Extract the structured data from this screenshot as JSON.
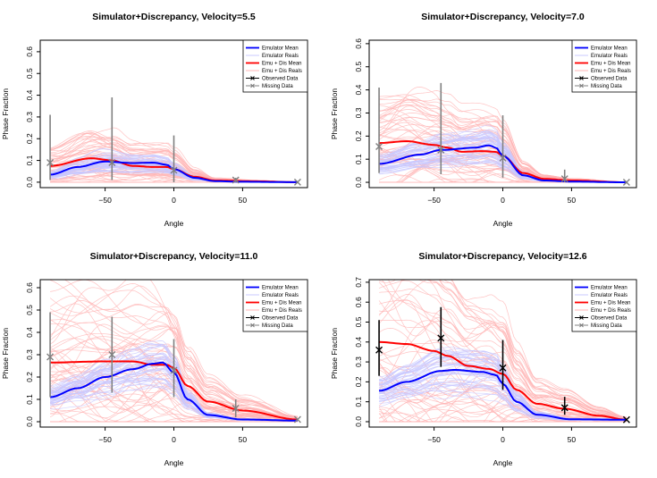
{
  "chart_data": [
    {
      "type": "line",
      "title": "Simulator+Discrepancy, Velocity=5.5",
      "xlabel": "Angle",
      "ylabel": "Phase Fraction",
      "xlim": [
        -97.2,
        97.2
      ],
      "ylim": [
        -0.025,
        0.653
      ],
      "xticks": [
        -50,
        0,
        50
      ],
      "yticks": [
        0.0,
        0.1,
        0.2,
        0.3,
        0.4,
        0.5,
        0.6
      ],
      "grid": false,
      "legend_position": "top-right",
      "emulator_mean": {
        "x": [
          -90,
          -70,
          -50,
          -30,
          -15,
          -5,
          0,
          15,
          30,
          50,
          90
        ],
        "y": [
          0.035,
          0.07,
          0.095,
          0.088,
          0.09,
          0.08,
          0.06,
          0.02,
          0.005,
          0.002,
          0.0
        ]
      },
      "emu_dis_mean": {
        "x": [
          -90,
          -60,
          -45,
          -30,
          -15,
          -5,
          0,
          15,
          30,
          60,
          90
        ],
        "y": [
          0.075,
          0.11,
          0.1,
          0.075,
          0.07,
          0.07,
          0.06,
          0.025,
          0.008,
          0.004,
          0.0
        ]
      },
      "data_points": [
        {
          "x": -90,
          "y": 0.09,
          "lo": 0.01,
          "hi": 0.31
        },
        {
          "x": -45,
          "y": 0.09,
          "lo": 0.01,
          "hi": 0.39
        },
        {
          "x": 0,
          "y": 0.055,
          "lo": 0.0,
          "hi": 0.215
        },
        {
          "x": 45,
          "y": 0.01,
          "lo": 0.0,
          "hi": 0.02
        },
        {
          "x": 90,
          "y": 0.0,
          "lo": 0.0,
          "hi": 0.0
        }
      ],
      "data_type": "Missing Data",
      "data_color": "#808080"
    },
    {
      "type": "line",
      "title": "Simulator+Discrepancy, Velocity=7.0",
      "xlabel": "Angle",
      "ylabel": "Phase Fraction",
      "xlim": [
        -97.2,
        97.2
      ],
      "ylim": [
        -0.023,
        0.615
      ],
      "xticks": [
        -50,
        0,
        50
      ],
      "yticks": [
        0.0,
        0.1,
        0.2,
        0.3,
        0.4,
        0.5,
        0.6
      ],
      "grid": false,
      "legend_position": "top-right",
      "emulator_mean": {
        "x": [
          -90,
          -60,
          -45,
          -20,
          -10,
          -5,
          0,
          15,
          30,
          50,
          90
        ],
        "y": [
          0.08,
          0.12,
          0.14,
          0.15,
          0.16,
          0.15,
          0.115,
          0.03,
          0.008,
          0.003,
          0.0
        ]
      },
      "emu_dis_mean": {
        "x": [
          -90,
          -70,
          -50,
          -40,
          -30,
          -15,
          -5,
          0,
          15,
          30,
          50,
          90
        ],
        "y": [
          0.17,
          0.178,
          0.162,
          0.15,
          0.132,
          0.135,
          0.132,
          0.115,
          0.04,
          0.015,
          0.008,
          0.0
        ]
      },
      "data_points": [
        {
          "x": -90,
          "y": 0.155,
          "lo": 0.04,
          "hi": 0.41
        },
        {
          "x": -45,
          "y": 0.14,
          "lo": 0.035,
          "hi": 0.43
        },
        {
          "x": 0,
          "y": 0.105,
          "lo": 0.02,
          "hi": 0.29
        },
        {
          "x": 45,
          "y": 0.015,
          "lo": 0.0,
          "hi": 0.055
        },
        {
          "x": 90,
          "y": 0.0,
          "lo": 0.0,
          "hi": 0.0
        }
      ],
      "data_type": "Missing Data",
      "data_color": "#808080"
    },
    {
      "type": "line",
      "title": "Simulator+Discrepancy, Velocity=11.0",
      "xlabel": "Angle",
      "ylabel": "Phase Fraction",
      "xlim": [
        -97.2,
        97.2
      ],
      "ylim": [
        -0.024,
        0.636
      ],
      "xticks": [
        -50,
        0,
        50
      ],
      "yticks": [
        0.0,
        0.1,
        0.2,
        0.3,
        0.4,
        0.5,
        0.6
      ],
      "grid": false,
      "legend_position": "top-right",
      "emulator_mean": {
        "x": [
          -90,
          -70,
          -50,
          -30,
          -15,
          -8,
          0,
          10,
          25,
          50,
          90
        ],
        "y": [
          0.11,
          0.15,
          0.2,
          0.235,
          0.26,
          0.265,
          0.22,
          0.1,
          0.03,
          0.01,
          0.005
        ]
      },
      "emu_dis_mean": {
        "x": [
          -90,
          -50,
          -30,
          -15,
          -5,
          0,
          10,
          25,
          50,
          90
        ],
        "y": [
          0.265,
          0.27,
          0.27,
          0.255,
          0.255,
          0.24,
          0.16,
          0.09,
          0.05,
          0.01
        ]
      },
      "data_points": [
        {
          "x": -90,
          "y": 0.29,
          "lo": 0.11,
          "hi": 0.49
        },
        {
          "x": -45,
          "y": 0.3,
          "lo": 0.13,
          "hi": 0.47
        },
        {
          "x": 0,
          "y": 0.23,
          "lo": 0.11,
          "hi": 0.37
        },
        {
          "x": 45,
          "y": 0.06,
          "lo": 0.02,
          "hi": 0.1
        },
        {
          "x": 90,
          "y": 0.01,
          "lo": 0.01,
          "hi": 0.01
        }
      ],
      "data_type": "Missing Data",
      "data_color": "#808080"
    },
    {
      "type": "line",
      "title": "Simulator+Discrepancy, Velocity=12.6",
      "xlabel": "Angle",
      "ylabel": "Phase Fraction",
      "xlim": [
        -97.2,
        97.2
      ],
      "ylim": [
        -0.027,
        0.713
      ],
      "xticks": [
        -50,
        0,
        50
      ],
      "yticks": [
        0.0,
        0.1,
        0.2,
        0.3,
        0.4,
        0.5,
        0.6,
        0.7
      ],
      "grid": false,
      "legend_position": "top-right",
      "emulator_mean": {
        "x": [
          -90,
          -70,
          -45,
          -35,
          -15,
          -5,
          0,
          10,
          25,
          50,
          90
        ],
        "y": [
          0.155,
          0.2,
          0.255,
          0.26,
          0.25,
          0.235,
          0.19,
          0.1,
          0.035,
          0.012,
          0.01
        ]
      },
      "emu_dis_mean": {
        "x": [
          -90,
          -70,
          -50,
          -40,
          -25,
          -10,
          0,
          10,
          25,
          45,
          70,
          90
        ],
        "y": [
          0.4,
          0.39,
          0.355,
          0.33,
          0.28,
          0.265,
          0.24,
          0.16,
          0.09,
          0.065,
          0.03,
          0.01
        ]
      },
      "data_points": [
        {
          "x": -90,
          "y": 0.36,
          "lo": 0.23,
          "hi": 0.51
        },
        {
          "x": -45,
          "y": 0.42,
          "lo": 0.275,
          "hi": 0.575
        },
        {
          "x": 0,
          "y": 0.27,
          "lo": 0.16,
          "hi": 0.41
        },
        {
          "x": 45,
          "y": 0.07,
          "lo": 0.035,
          "hi": 0.125
        },
        {
          "x": 90,
          "y": 0.01,
          "lo": 0.01,
          "hi": 0.01
        }
      ],
      "data_type": "Observed Data",
      "data_color": "#000000"
    }
  ],
  "legend": [
    {
      "label": "Emulator Mean",
      "color": "#0000ff",
      "style": "thick-line"
    },
    {
      "label": "Emulator Reals",
      "color": "#c8c8ff",
      "style": "thin-line"
    },
    {
      "label": "Emu + Dis Mean",
      "color": "#ff0000",
      "style": "thick-line"
    },
    {
      "label": "Emu + Dis Reals",
      "color": "#ffb4b4",
      "style": "thin-line"
    },
    {
      "label": "Observed Data",
      "color": "#000000",
      "style": "x-line"
    },
    {
      "label": "Missing Data",
      "color": "#808080",
      "style": "x-line"
    }
  ],
  "colors": {
    "emulator_mean": "#0000ff",
    "emulator_reals": "#c8c8ff",
    "emu_dis_mean": "#ff0000",
    "emu_dis_reals": "#ffb4b4"
  }
}
